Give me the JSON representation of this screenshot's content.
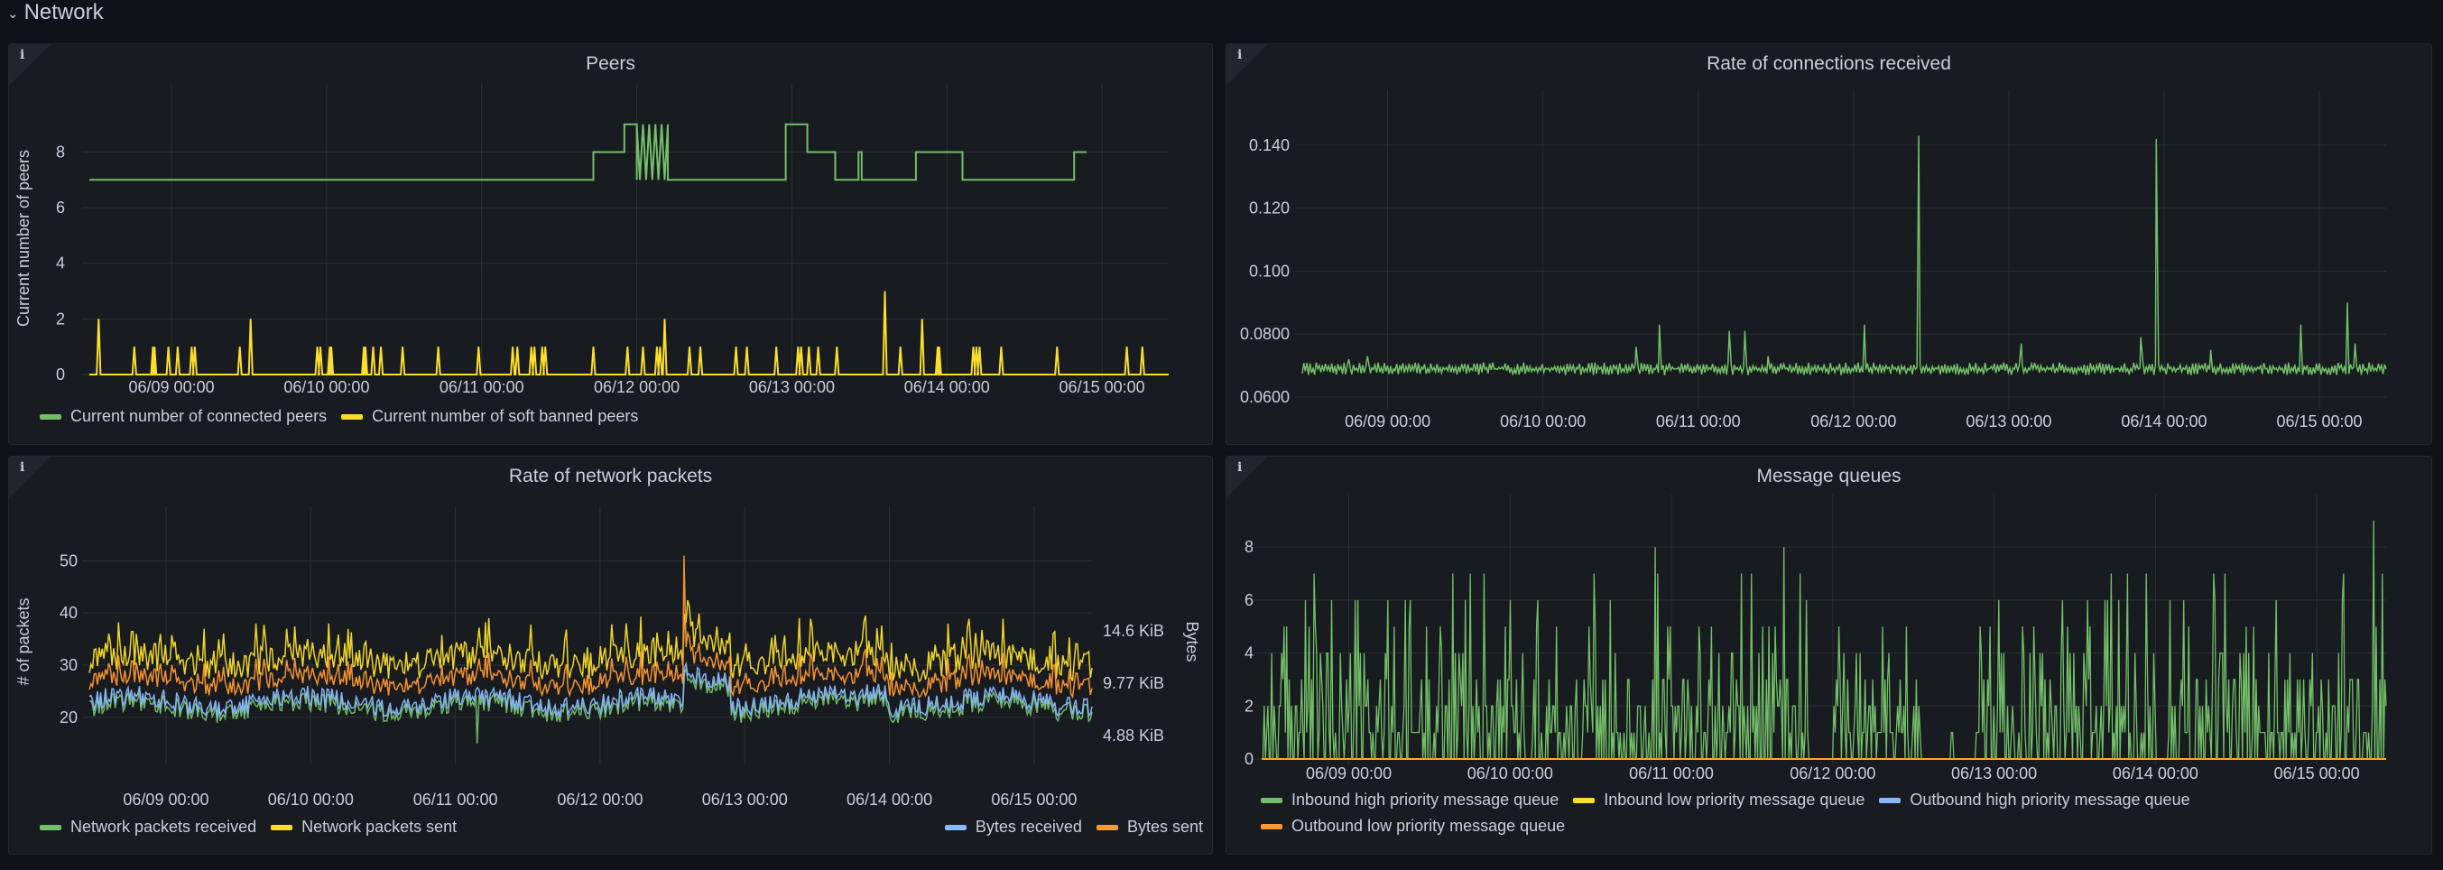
{
  "row": {
    "title": "Network",
    "collapse_icon": "chevron-down-icon"
  },
  "panels": [
    {
      "id": "peers",
      "title": "Peers",
      "info_icon": "info-icon",
      "legend": [
        {
          "label": "Current number of connected peers",
          "color": "#73bf69"
        },
        {
          "label": "Current number of soft banned peers",
          "color": "#fade2a"
        }
      ]
    },
    {
      "id": "connections",
      "title": "Rate of connections received",
      "info_icon": "info-icon",
      "legend": []
    },
    {
      "id": "packets",
      "title": "Rate of network packets",
      "info_icon": "info-icon",
      "legend_left": [
        {
          "label": "Network packets received",
          "color": "#73bf69"
        },
        {
          "label": "Network packets sent",
          "color": "#fade2a"
        }
      ],
      "legend_right": [
        {
          "label": "Bytes received",
          "color": "#8ab8ff"
        },
        {
          "label": "Bytes sent",
          "color": "#ff9830"
        }
      ]
    },
    {
      "id": "queues",
      "title": "Message queues",
      "info_icon": "info-icon",
      "legend": [
        {
          "label": "Inbound high priority message queue",
          "color": "#73bf69"
        },
        {
          "label": "Inbound low priority message queue",
          "color": "#fade2a"
        },
        {
          "label": "Outbound high priority message queue",
          "color": "#8ab8ff"
        },
        {
          "label": "Outbound low priority message queue",
          "color": "#ff9830"
        }
      ]
    }
  ],
  "chart_data": [
    {
      "type": "line",
      "title": "Peers",
      "xlabel": "",
      "ylabel": "Current number of peers",
      "x_ticks": [
        "06/09 00:00",
        "06/10 00:00",
        "06/11 00:00",
        "06/12 00:00",
        "06/13 00:00",
        "06/14 00:00",
        "06/15 00:00"
      ],
      "x_range_days": [
        -0.53,
        6.43
      ],
      "y_ticks": [
        "0",
        "2",
        "4",
        "6",
        "8"
      ],
      "ylim": [
        0,
        9.8
      ],
      "grid": true,
      "legend_position": "bottom-left",
      "series": [
        {
          "name": "Current number of connected peers",
          "color": "#73bf69",
          "step_points": [
            [
              -0.53,
              7
            ],
            [
              2.72,
              7
            ],
            [
              2.72,
              8
            ],
            [
              2.92,
              8
            ],
            [
              2.92,
              9
            ],
            [
              3.0,
              9
            ],
            [
              3.0,
              7
            ],
            [
              3.0,
              9
            ],
            [
              3.02,
              7
            ],
            [
              3.04,
              9
            ],
            [
              3.06,
              7
            ],
            [
              3.08,
              9
            ],
            [
              3.1,
              7
            ],
            [
              3.12,
              9
            ],
            [
              3.14,
              7
            ],
            [
              3.16,
              9
            ],
            [
              3.18,
              7
            ],
            [
              3.2,
              9
            ],
            [
              3.2,
              7
            ],
            [
              3.96,
              7
            ],
            [
              3.96,
              9
            ],
            [
              4.1,
              9
            ],
            [
              4.1,
              8
            ],
            [
              4.28,
              8
            ],
            [
              4.28,
              7
            ],
            [
              4.43,
              7
            ],
            [
              4.43,
              8
            ],
            [
              4.45,
              8
            ],
            [
              4.45,
              7
            ],
            [
              4.8,
              7
            ],
            [
              4.8,
              8
            ],
            [
              5.1,
              8
            ],
            [
              5.1,
              7
            ],
            [
              5.82,
              7
            ],
            [
              5.82,
              8
            ],
            [
              5.9,
              8
            ]
          ]
        },
        {
          "name": "Current number of soft banned peers",
          "color": "#fade2a",
          "spikes": [
            [
              -0.47,
              2
            ],
            [
              -0.24,
              1
            ],
            [
              -0.12,
              1
            ],
            [
              -0.11,
              1
            ],
            [
              -0.02,
              1
            ],
            [
              0.04,
              1
            ],
            [
              0.13,
              1
            ],
            [
              0.15,
              1
            ],
            [
              0.44,
              1
            ],
            [
              0.51,
              2
            ],
            [
              0.94,
              1
            ],
            [
              0.96,
              1
            ],
            [
              1.02,
              1
            ],
            [
              1.03,
              1
            ],
            [
              1.24,
              1
            ],
            [
              1.25,
              1
            ],
            [
              1.3,
              1
            ],
            [
              1.35,
              1
            ],
            [
              1.49,
              1
            ],
            [
              1.72,
              1
            ],
            [
              1.98,
              1
            ],
            [
              2.2,
              1
            ],
            [
              2.23,
              1
            ],
            [
              2.32,
              1
            ],
            [
              2.34,
              1
            ],
            [
              2.39,
              1
            ],
            [
              2.41,
              1
            ],
            [
              2.72,
              1
            ],
            [
              2.94,
              1
            ],
            [
              3.04,
              1
            ],
            [
              3.13,
              1
            ],
            [
              3.15,
              1
            ],
            [
              3.18,
              2
            ],
            [
              3.34,
              1
            ],
            [
              3.41,
              1
            ],
            [
              3.64,
              1
            ],
            [
              3.71,
              1
            ],
            [
              3.9,
              1
            ],
            [
              4.04,
              1
            ],
            [
              4.06,
              1
            ],
            [
              4.11,
              1
            ],
            [
              4.17,
              1
            ],
            [
              4.29,
              1
            ],
            [
              4.6,
              3
            ],
            [
              4.7,
              1
            ],
            [
              4.84,
              2
            ],
            [
              4.94,
              1
            ],
            [
              4.95,
              1
            ],
            [
              5.17,
              1
            ],
            [
              5.19,
              1
            ],
            [
              5.21,
              1
            ],
            [
              5.35,
              1
            ],
            [
              5.71,
              1
            ],
            [
              6.16,
              1
            ],
            [
              6.26,
              1
            ]
          ]
        }
      ]
    },
    {
      "type": "line",
      "title": "Rate of connections received",
      "xlabel": "",
      "ylabel": "",
      "x_ticks": [
        "06/09 00:00",
        "06/10 00:00",
        "06/11 00:00",
        "06/12 00:00",
        "06/13 00:00",
        "06/14 00:00",
        "06/15 00:00"
      ],
      "x_range_days": [
        -0.55,
        6.43
      ],
      "y_ticks": [
        "0.0600",
        "0.0800",
        "0.100",
        "0.120",
        "0.140"
      ],
      "ylim": [
        0.058,
        0.152
      ],
      "grid": true,
      "legend_position": "none",
      "series": [
        {
          "name": "Rate of connections received",
          "color": "#73bf69",
          "baseline_range": [
            0.067,
            0.071
          ],
          "spikes": [
            [
              -0.25,
              0.072
            ],
            [
              -0.13,
              0.073
            ],
            [
              1.6,
              0.076
            ],
            [
              1.75,
              0.083
            ],
            [
              2.2,
              0.081
            ],
            [
              2.3,
              0.081
            ],
            [
              2.45,
              0.073
            ],
            [
              3.07,
              0.083
            ],
            [
              3.42,
              0.143
            ],
            [
              4.08,
              0.077
            ],
            [
              4.85,
              0.079
            ],
            [
              4.95,
              0.142
            ],
            [
              5.3,
              0.075
            ],
            [
              5.88,
              0.083
            ],
            [
              6.18,
              0.09
            ],
            [
              6.23,
              0.077
            ]
          ]
        }
      ]
    },
    {
      "type": "line",
      "title": "Rate of network packets",
      "xlabel": "",
      "ylabel": "# of packets",
      "y2label": "Bytes",
      "x_ticks": [
        "06/09 00:00",
        "06/10 00:00",
        "06/11 00:00",
        "06/12 00:00",
        "06/13 00:00",
        "06/14 00:00",
        "06/15 00:00"
      ],
      "x_range_days": [
        -0.53,
        6.4
      ],
      "y_ticks": [
        "20",
        "30",
        "40",
        "50"
      ],
      "ylim": [
        12,
        57
      ],
      "y2_ticks": [
        "4.88 KiB",
        "9.77 KiB",
        "14.6 KiB"
      ],
      "grid": true,
      "legend_position": "bottom",
      "series": [
        {
          "name": "Network packets received",
          "color": "#73bf69",
          "typical_range": [
            22,
            30
          ]
        },
        {
          "name": "Network packets sent",
          "color": "#fade2a",
          "typical_range": [
            25,
            38
          ]
        },
        {
          "name": "Bytes received",
          "color": "#8ab8ff",
          "typical_range": [
            22,
            30
          ]
        },
        {
          "name": "Bytes sent",
          "color": "#ff9830",
          "typical_range": [
            24,
            34
          ]
        }
      ],
      "notable_points": [
        {
          "x_day": 2.15,
          "value": 15,
          "series": "Network packets received"
        },
        {
          "x_day": 3.58,
          "value": 51,
          "series": "Bytes sent"
        },
        {
          "x_day": 3.6,
          "elevated_level_until": 3.9,
          "value": 36
        }
      ]
    },
    {
      "type": "line",
      "title": "Message queues",
      "xlabel": "",
      "ylabel": "",
      "x_ticks": [
        "06/09 00:00",
        "06/10 00:00",
        "06/11 00:00",
        "06/12 00:00",
        "06/13 00:00",
        "06/14 00:00",
        "06/15 00:00"
      ],
      "x_range_days": [
        -0.54,
        6.43
      ],
      "y_ticks": [
        "0",
        "2",
        "4",
        "6",
        "8"
      ],
      "ylim": [
        0,
        9.3
      ],
      "grid": true,
      "legend_position": "bottom-left",
      "series": [
        {
          "name": "Inbound high priority message queue",
          "color": "#73bf69",
          "range": [
            0,
            9
          ],
          "gaps_days": [
            [
              2.85,
              3.0
            ],
            [
              3.55,
              3.73
            ],
            [
              3.75,
              3.86
            ],
            [
              5.0,
              5.08
            ]
          ]
        },
        {
          "name": "Inbound low priority message queue",
          "color": "#fade2a",
          "constant": 0
        },
        {
          "name": "Outbound high priority message queue",
          "color": "#8ab8ff",
          "constant": 0
        },
        {
          "name": "Outbound low priority message queue",
          "color": "#ff9830",
          "constant": 0
        }
      ]
    }
  ]
}
